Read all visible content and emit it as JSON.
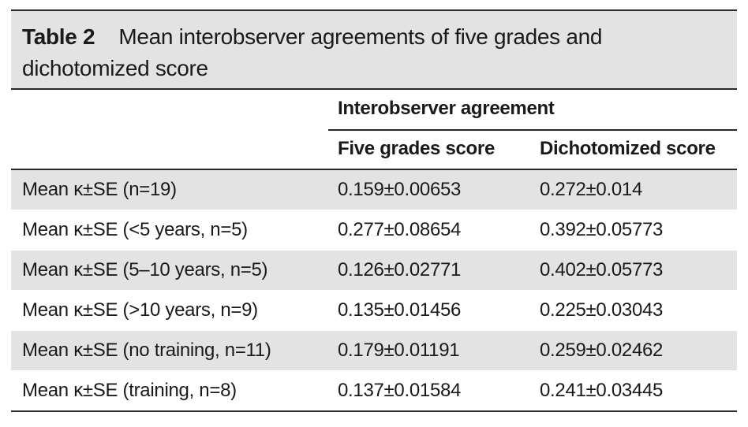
{
  "table": {
    "label": "Table 2",
    "title_line1": "Mean interobserver agreements of five grades and",
    "title_line2": "dichotomized score",
    "group_header": "Interobserver agreement",
    "columns": [
      "",
      "Five grades score",
      "Dichotomized score"
    ],
    "rows": [
      [
        "Mean κ±SE (n=19)",
        "0.159±0.00653",
        "0.272±0.014"
      ],
      [
        "Mean κ±SE (<5 years, n=5)",
        "0.277±0.08654",
        "0.392±0.05773"
      ],
      [
        "Mean κ±SE (5–10 years, n=5)",
        "0.126±0.02771",
        "0.402±0.05773"
      ],
      [
        "Mean κ±SE (>10 years, n=9)",
        "0.135±0.01456",
        "0.225±0.03043"
      ],
      [
        "Mean κ±SE (no training, n=11)",
        "0.179±0.01191",
        "0.259±0.02462"
      ],
      [
        "Mean κ±SE (training, n=8)",
        "0.137±0.01584",
        "0.241±0.03445"
      ]
    ]
  },
  "colors": {
    "shade": "#e3e3e3",
    "rule": "#2a2a2a",
    "text": "#1a1a1a"
  }
}
